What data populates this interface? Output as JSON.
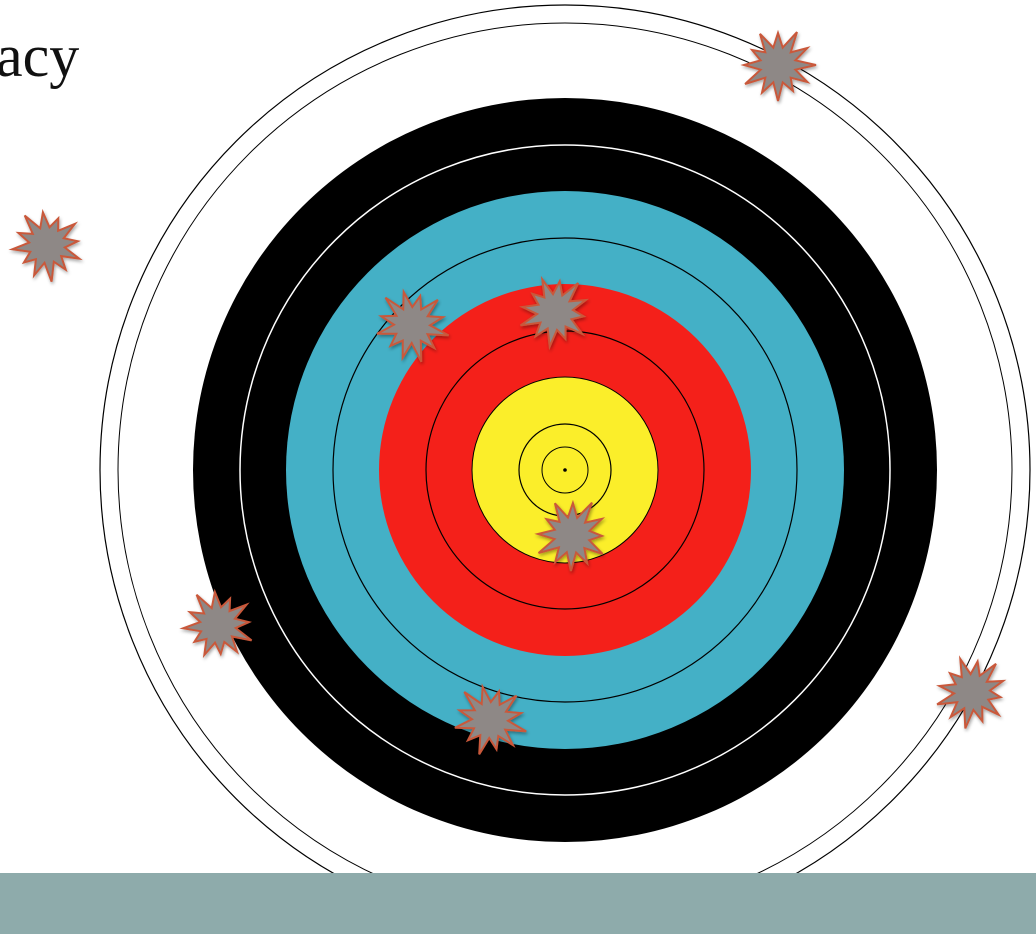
{
  "slide": {
    "title": "acy"
  }
}
